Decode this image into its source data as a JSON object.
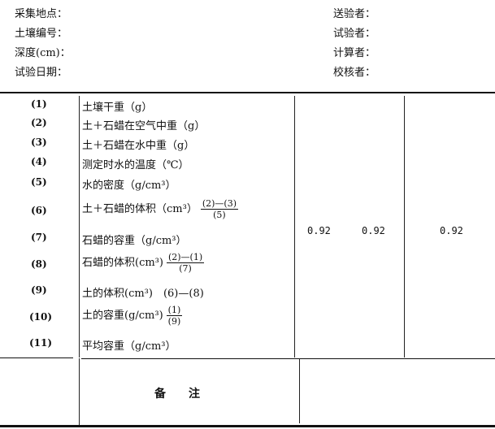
{
  "header": {
    "left": [
      "采集地点：",
      "土壤编号：",
      "深度(cm)：",
      "试验日期："
    ],
    "right": [
      "送验者：",
      "试验者：",
      "计算者：",
      "校核者："
    ]
  },
  "rows": [
    {
      "no": "(1)",
      "label": "土壤干重（g）"
    },
    {
      "no": "(2)",
      "label": "土＋石蜡在空气中重（g）"
    },
    {
      "no": "(3)",
      "label": "土＋石蜡在水中重（g）"
    },
    {
      "no": "(4)",
      "label": "测定时水的温度（℃）"
    },
    {
      "no": "(5)",
      "label": "水的密度（g/cm³）"
    },
    {
      "no": "(6)",
      "label": "土＋石蜡的体积（cm³）",
      "num": "(2)—(3)",
      "den": "(5)"
    },
    {
      "no": "(7)",
      "label": "石蜡的容重（g/cm³）"
    },
    {
      "no": "(8)",
      "label": "石蜡的体积(cm³)",
      "num": "(2)—(1)",
      "den": "(7)"
    },
    {
      "no": "(9)",
      "label": "土的体积(cm³)　(6)—(8)"
    },
    {
      "no": "(10)",
      "label": "土的容重(g/cm³)",
      "num": "(1)",
      "den": "(9)"
    },
    {
      "no": "(11)",
      "label": "平均容重（g/cm³）"
    }
  ],
  "values": [
    "0.92",
    "0.92",
    "0.92"
  ],
  "remarks_label": "备　　注"
}
